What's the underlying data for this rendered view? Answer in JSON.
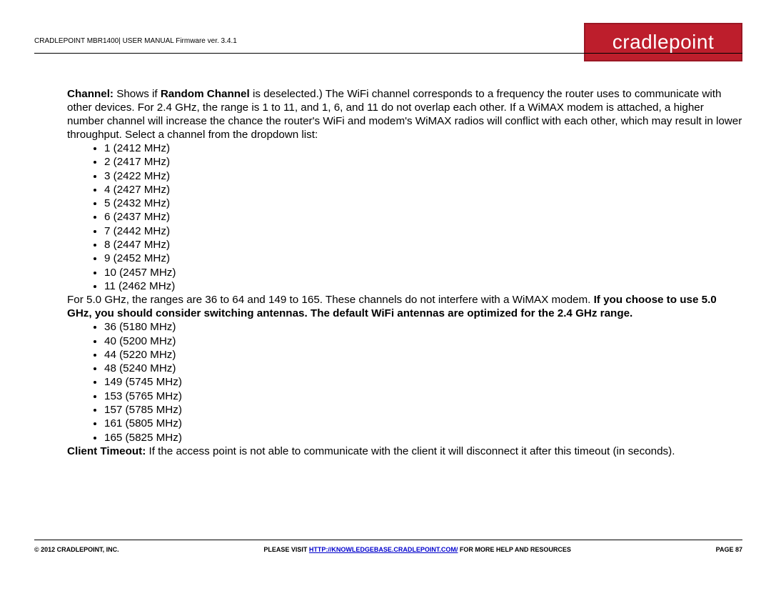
{
  "header": {
    "title": "CRADLEPOINT MBR1400| USER MANUAL Firmware ver. 3.4.1",
    "logo_text": "cradlepoint"
  },
  "body": {
    "p1_channel_bold": "Channel:",
    "p1_shows_if": " Shows if ",
    "p1_random_bold": "Random Channel",
    "p1_rest": " is deselected.) The WiFi channel corresponds to a frequency the router uses to communicate with other devices. For 2.4 GHz, the range is 1 to 11, and 1, 6, and 11 do not overlap each other. If a WiMAX modem is attached, a higher number channel will increase the chance the router's WiFi and modem's WiMAX radios will conflict with each other, which may result in lower throughput. Select a channel from the dropdown list:",
    "channels_24": [
      "1 (2412 MHz)",
      "2 (2417 MHz)",
      "3 (2422 MHz)",
      "4 (2427 MHz)",
      "5 (2432 MHz)",
      "6 (2437 MHz)",
      "7 (2442 MHz)",
      "8 (2447 MHz)",
      "9 (2452 MHz)",
      "10 (2457 MHz)",
      "11 (2462 MHz)"
    ],
    "p2_plain": "For 5.0 GHz, the ranges are 36 to 64 and 149 to 165. These channels do not interfere with a WiMAX modem. ",
    "p2_bold": "If you choose to use 5.0 GHz, you should consider switching antennas. The default WiFi antennas are optimized for the 2.4 GHz range.",
    "channels_50": [
      "36 (5180 MHz)",
      "40 (5200 MHz)",
      "44 (5220 MHz)",
      "48 (5240 MHz)",
      "149 (5745 MHz)",
      "153 (5765 MHz)",
      "157 (5785 MHz)",
      "161 (5805 MHz)",
      "165 (5825 MHz)"
    ],
    "p3_bold": "Client Timeout:",
    "p3_rest": " If the access point is not able to communicate with the client it will disconnect it after this timeout (in seconds)."
  },
  "footer": {
    "left": "© 2012 CRADLEPOINT, INC.",
    "center_pre": "PLEASE VISIT ",
    "center_link": "HTTP://KNOWLEDGEBASE.CRADLEPOINT.COM/",
    "center_post": " FOR MORE HELP AND RESOURCES",
    "right": "PAGE 87"
  }
}
